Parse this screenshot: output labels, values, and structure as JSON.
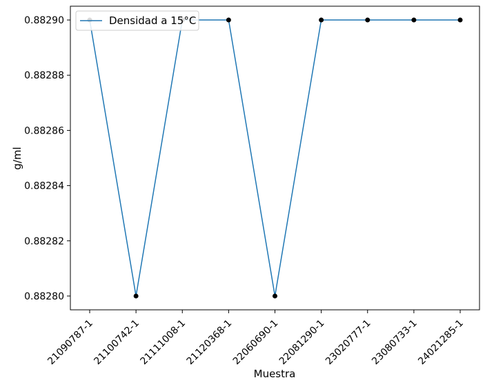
{
  "chart_data": {
    "type": "line",
    "title": "",
    "xlabel": "Muestra",
    "ylabel": "g/ml",
    "categories": [
      "21090787-1",
      "21100742-1",
      "21111008-1",
      "21120368-1",
      "22060690-1",
      "22081290-1",
      "23020777-1",
      "23080733-1",
      "24021285-1"
    ],
    "series": [
      {
        "name": "Densidad a 15°C",
        "color": "#1f77b4",
        "marker_color": "#000000",
        "values": [
          0.8829,
          0.8828,
          0.8829,
          0.8829,
          0.8828,
          0.8829,
          0.8829,
          0.8829,
          0.8829
        ]
      }
    ],
    "ylim": [
      0.882795,
      0.882905
    ],
    "yticks": [
      "0.88280",
      "0.88282",
      "0.88284",
      "0.88286",
      "0.88288",
      "0.88290"
    ],
    "ytick_values": [
      0.8828,
      0.88282,
      0.88284,
      0.88286,
      0.88288,
      0.8829
    ],
    "grid": false,
    "legend_position": "top-left"
  }
}
